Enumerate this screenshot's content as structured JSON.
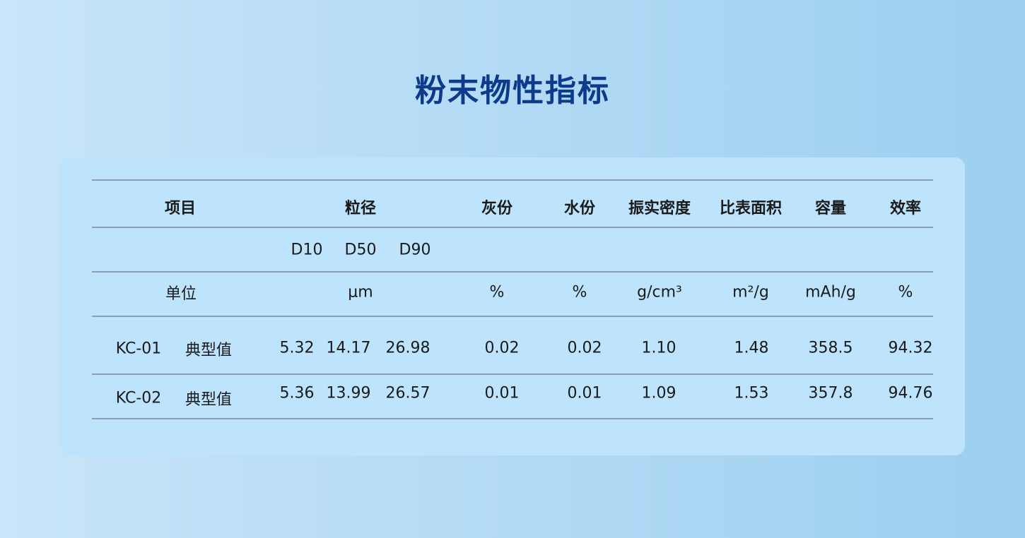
{
  "title": "粉末物性指标",
  "header": {
    "item": "项目",
    "particle_size": "粒径",
    "columns": [
      "灰份",
      "水份",
      "振实密度",
      "比表面积",
      "容量",
      "效率"
    ]
  },
  "sub_header": [
    "D10",
    "D50",
    "D90"
  ],
  "units": {
    "label": "单位",
    "particle_size": "μm",
    "columns": [
      "%",
      "%",
      "g/cm³",
      "m²/g",
      "mAh/g",
      "%"
    ]
  },
  "rows": [
    {
      "id": "KC-01",
      "type": "典型值",
      "d10": "5.32",
      "d50": "14.17",
      "d90": "26.98",
      "values": [
        "0.02",
        "0.02",
        "1.10",
        "1.48",
        "358.5",
        "94.32"
      ]
    },
    {
      "id": "KC-02",
      "type": "典型值",
      "d10": "5.36",
      "d50": "13.99",
      "d90": "26.57",
      "values": [
        "0.01",
        "0.01",
        "1.09",
        "1.53",
        "357.8",
        "94.76"
      ]
    }
  ]
}
